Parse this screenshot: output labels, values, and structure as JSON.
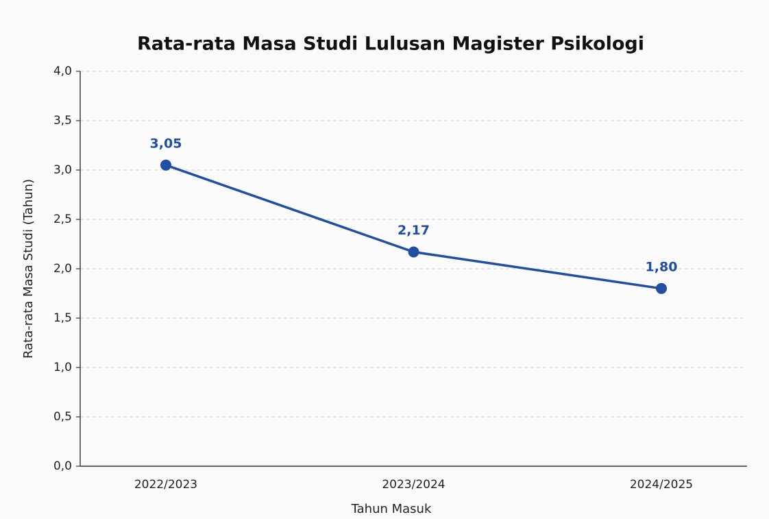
{
  "chart_data": {
    "type": "line",
    "title": "Rata-rata Masa Studi Lulusan Magister Psikologi",
    "xlabel": "Tahun Masuk",
    "ylabel": "Rata-rata Masa Studi (Tahun)",
    "categories": [
      "2022/2023",
      "2023/2024",
      "2024/2025"
    ],
    "series": [
      {
        "name": "Rata-rata Masa Studi",
        "color": "#1f4ea3",
        "values": [
          3.05,
          2.17,
          1.8
        ],
        "value_labels": [
          "3,05",
          "2,17",
          "1,80"
        ]
      }
    ],
    "ylim": [
      0,
      4
    ],
    "yticks": [
      {
        "value": 0,
        "label": "0,0"
      },
      {
        "value": 0.5,
        "label": "0,5"
      },
      {
        "value": 1,
        "label": "1,0"
      },
      {
        "value": 1.5,
        "label": "1,5"
      },
      {
        "value": 2,
        "label": "2,0"
      },
      {
        "value": 2.5,
        "label": "2,5"
      },
      {
        "value": 3,
        "label": "3,0"
      },
      {
        "value": 3.5,
        "label": "3,5"
      },
      {
        "value": 4,
        "label": "4,0"
      }
    ],
    "grid": true
  }
}
